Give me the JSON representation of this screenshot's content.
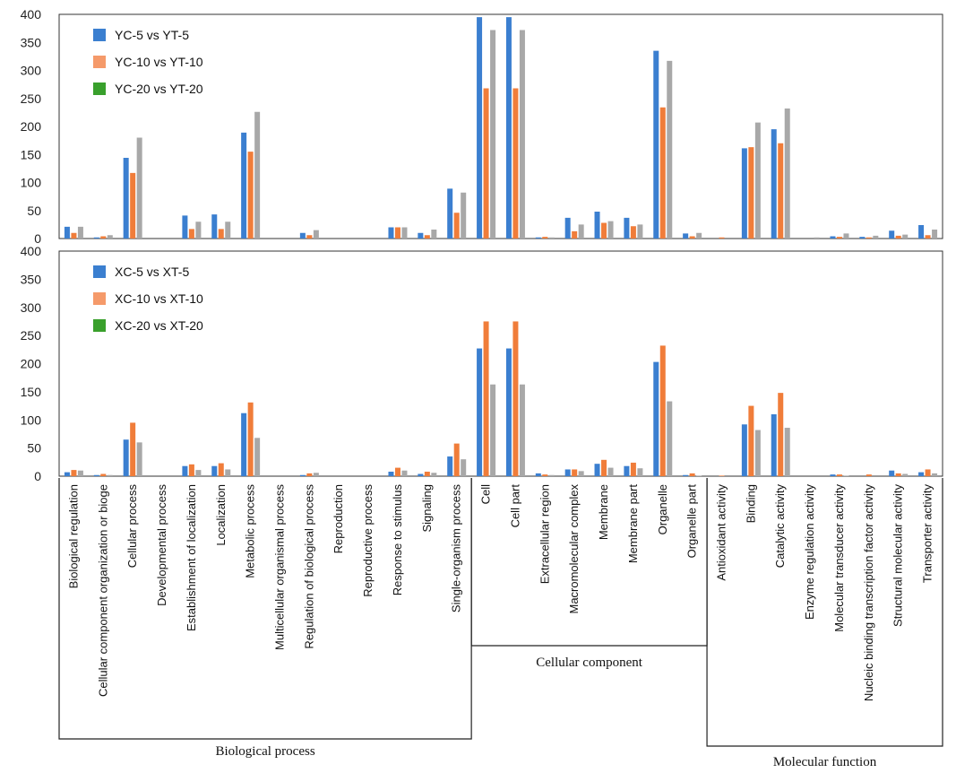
{
  "chart_data": {
    "type": "bar",
    "categories": [
      "Biological regulation",
      "Cellular component organization or bioge",
      "Cellular process",
      "Developmental process",
      "Establishment of localization",
      "Localization",
      "Metabolic process",
      "Multicellular organismal process",
      "Regulation of biological process",
      "Reproduction",
      "Reproductive process",
      "Response to stimulus",
      "Signaling",
      "Single-organism process",
      "Cell",
      "Cell part",
      "Extracellular region",
      "Macromolecular complex",
      "Membrane",
      "Membrane part",
      "Organelle",
      "Organelle part",
      "Antioxidant activity",
      "Binding",
      "Catalytic activity",
      "Enzyme regulation activity",
      "Molecular transducer activity",
      "Nucleic binding transcription factor activity",
      "Structural molecular activity",
      "Transporter activity"
    ],
    "groups": [
      {
        "label": "Biological process",
        "start": 0,
        "end": 13
      },
      {
        "label": "Cellular component",
        "start": 14,
        "end": 21
      },
      {
        "label": "Molecular function",
        "start": 22,
        "end": 29
      }
    ],
    "ylim": [
      0,
      400
    ],
    "yticks": [
      0,
      50,
      100,
      150,
      200,
      250,
      300,
      350,
      400
    ],
    "grid": false,
    "legend_position": "top-left",
    "series_colors": [
      "#3b7fd0",
      "#f07d3a",
      "#a8a8a8"
    ],
    "legend_swatch_colors": [
      "#3b7fd0",
      "#f59a6a",
      "#39a02c"
    ],
    "panels": [
      {
        "series": [
          {
            "name": "YC-5 vs YT-5",
            "values": [
              21,
              2,
              144,
              0,
              41,
              43,
              189,
              0,
              10,
              0,
              0,
              20,
              10,
              89,
              395,
              395,
              2,
              37,
              48,
              37,
              335,
              9,
              0,
              161,
              195,
              0,
              4,
              3,
              14,
              24
            ]
          },
          {
            "name": "YC-10 vs YT-10",
            "values": [
              10,
              4,
              117,
              0,
              17,
              17,
              155,
              0,
              6,
              0,
              0,
              20,
              6,
              46,
              268,
              268,
              3,
              13,
              28,
              22,
              234,
              4,
              2,
              163,
              170,
              0,
              3,
              2,
              5,
              6
            ]
          },
          {
            "name": "YC-20 vs YT-20",
            "values": [
              21,
              6,
              180,
              0,
              30,
              30,
              226,
              0,
              15,
              0,
              0,
              20,
              16,
              82,
              372,
              372,
              2,
              25,
              31,
              25,
              317,
              10,
              0,
              207,
              232,
              2,
              9,
              5,
              7,
              16
            ]
          }
        ]
      },
      {
        "series": [
          {
            "name": "XC-5 vs XT-5",
            "values": [
              7,
              2,
              65,
              0,
              18,
              18,
              112,
              0,
              2,
              0,
              0,
              8,
              4,
              35,
              227,
              227,
              5,
              12,
              22,
              18,
              203,
              2,
              0,
              92,
              110,
              0,
              3,
              0,
              10,
              7
            ]
          },
          {
            "name": "XC-10 vs XT-10",
            "values": [
              11,
              4,
              95,
              0,
              21,
              23,
              131,
              0,
              5,
              0,
              0,
              15,
              8,
              58,
              275,
              275,
              3,
              12,
              29,
              24,
              232,
              5,
              1,
              125,
              148,
              0,
              3,
              3,
              5,
              12
            ]
          },
          {
            "name": "XC-20 vs XT-20",
            "values": [
              10,
              2,
              60,
              0,
              11,
              12,
              68,
              0,
              6,
              0,
              0,
              10,
              6,
              30,
              163,
              163,
              2,
              9,
              15,
              14,
              133,
              1,
              0,
              82,
              86,
              0,
              1,
              0,
              4,
              5
            ]
          }
        ]
      }
    ]
  }
}
